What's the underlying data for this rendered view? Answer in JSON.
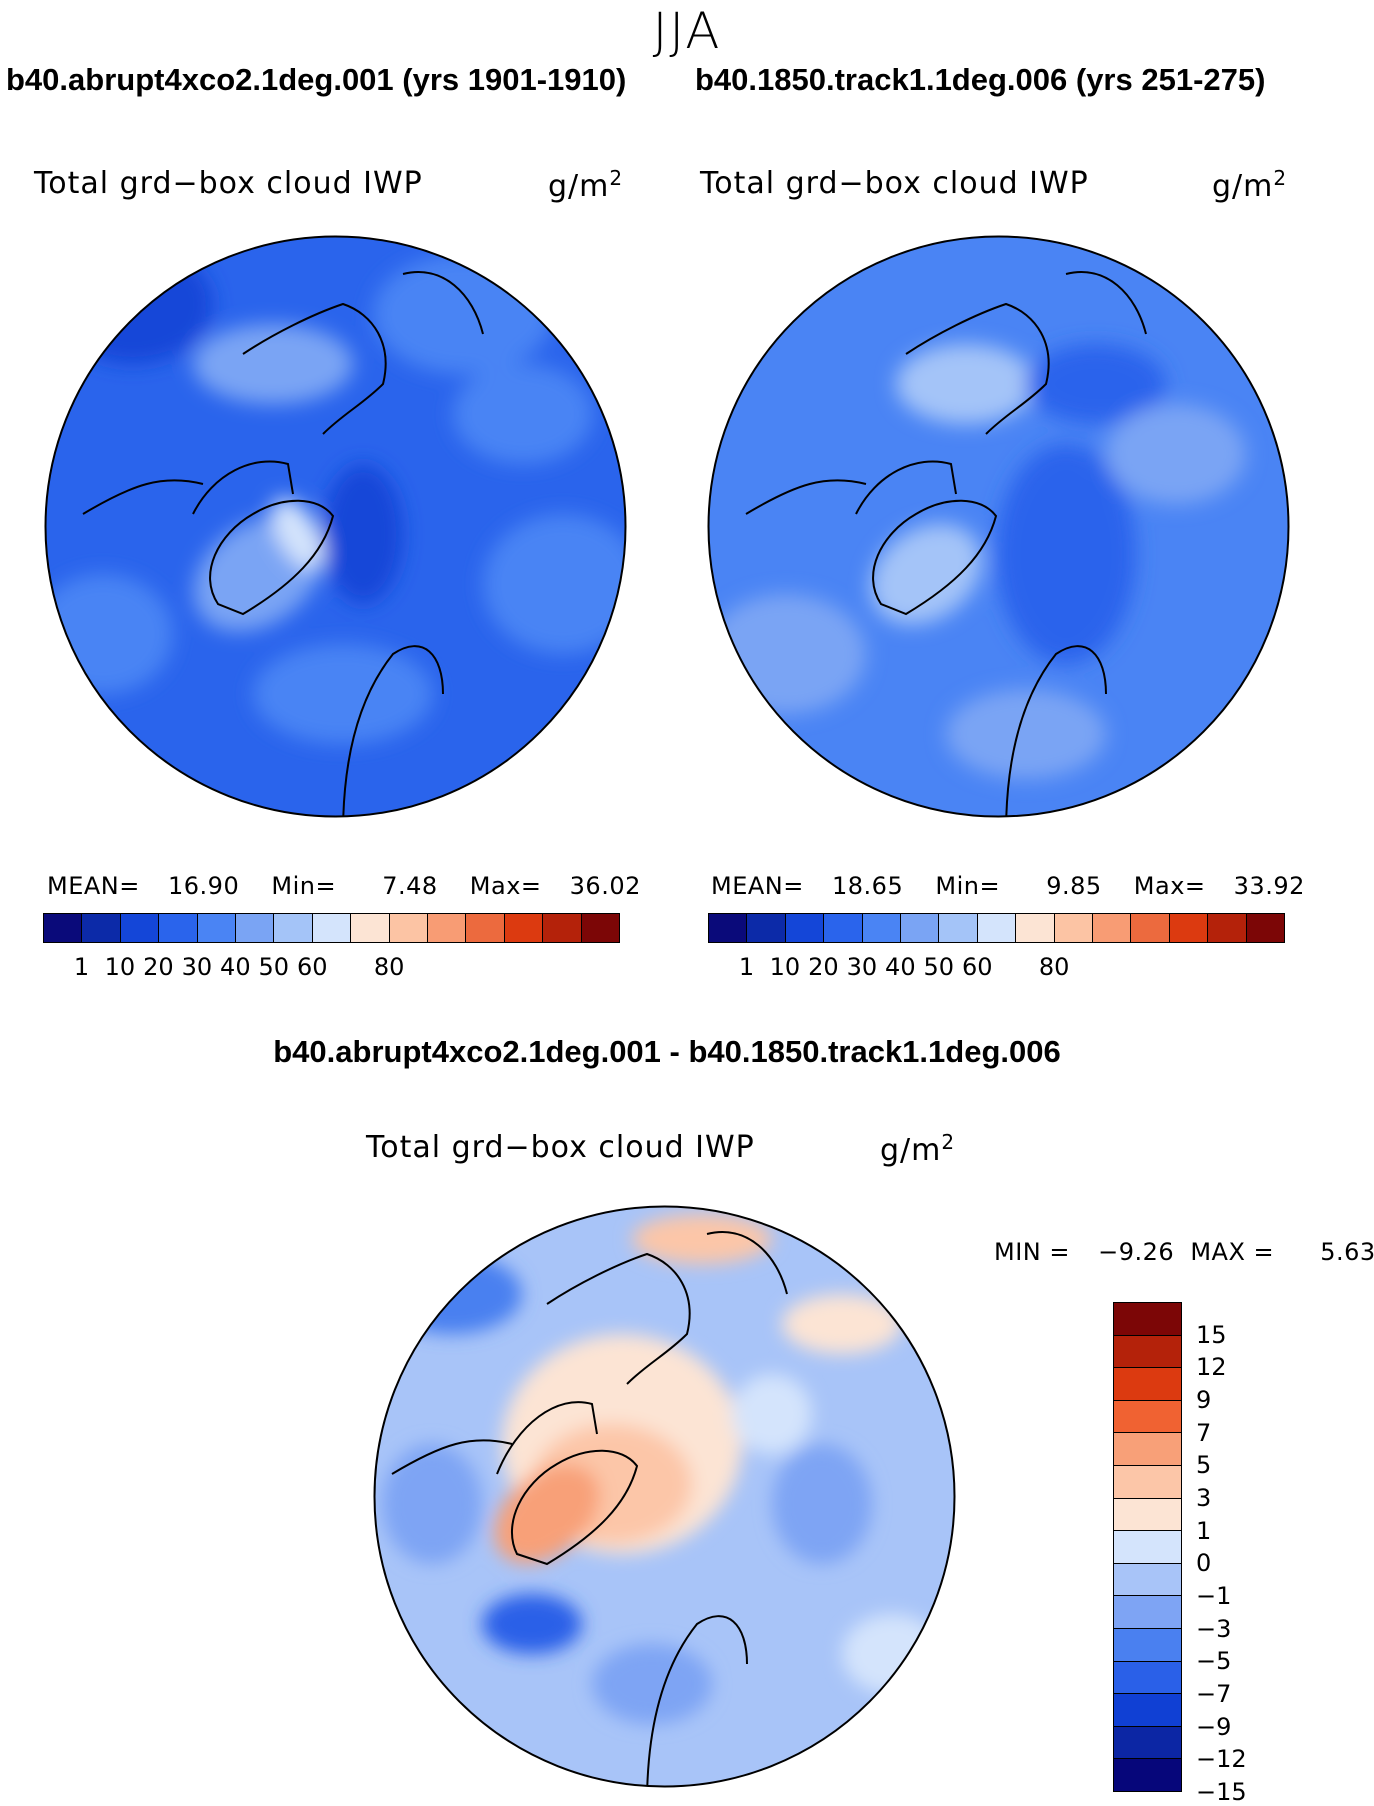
{
  "season": "JJA",
  "panel_a": {
    "case": "b40.abrupt4xco2.1deg.001 (yrs 1901-1910)",
    "variable": "Total grd−box cloud IWP",
    "units": "g/m",
    "units_exp": "2",
    "stats": {
      "mean_label": "MEAN=",
      "mean": "16.90",
      "min_label": "Min=",
      "min": "7.48",
      "max_label": "Max=",
      "max": "36.02"
    }
  },
  "panel_b": {
    "case": "b40.1850.track1.1deg.006 (yrs 251-275)",
    "variable": "Total grd−box cloud IWP",
    "units": "g/m",
    "units_exp": "2",
    "stats": {
      "mean_label": "MEAN=",
      "mean": "18.65",
      "min_label": "Min=",
      "min": "9.85",
      "max_label": "Max=",
      "max": "33.92"
    }
  },
  "panel_diff": {
    "title": "b40.abrupt4xco2.1deg.001 - b40.1850.track1.1deg.006",
    "variable": "Total grd−box cloud IWP",
    "units": "g/m",
    "units_exp": "2",
    "stats": {
      "min_label": "MIN =",
      "min": "−9.26",
      "max_label": "MAX =",
      "max": "5.63"
    }
  },
  "colorbar_abs": {
    "colors": [
      "#0a0a7a",
      "#0c2aa8",
      "#1446d8",
      "#2a64ec",
      "#4a84f4",
      "#7aa4f4",
      "#a4c4f8",
      "#d4e4fc",
      "#fce4d4",
      "#fcc4a4",
      "#f89c74",
      "#ec6a3e",
      "#dc3a10",
      "#b4220a",
      "#7c0606"
    ],
    "tick_labels": [
      "1",
      "10",
      "20",
      "30",
      "40",
      "50",
      "60",
      "80"
    ]
  },
  "colorbar_diff": {
    "colors": [
      "#7c0606",
      "#b4220a",
      "#dc3a10",
      "#f06232",
      "#f8a078",
      "#fcc6a8",
      "#fce4d4",
      "#d4e4fc",
      "#a8c4f8",
      "#7ea4f4",
      "#4a80f0",
      "#2a60e8",
      "#1040d4",
      "#0c26a4",
      "#06067a"
    ],
    "tick_labels": [
      "15",
      "12",
      "9",
      "7",
      "5",
      "3",
      "1",
      "0",
      "−1",
      "−3",
      "−5",
      "−7",
      "−9",
      "−12",
      "−15"
    ]
  }
}
